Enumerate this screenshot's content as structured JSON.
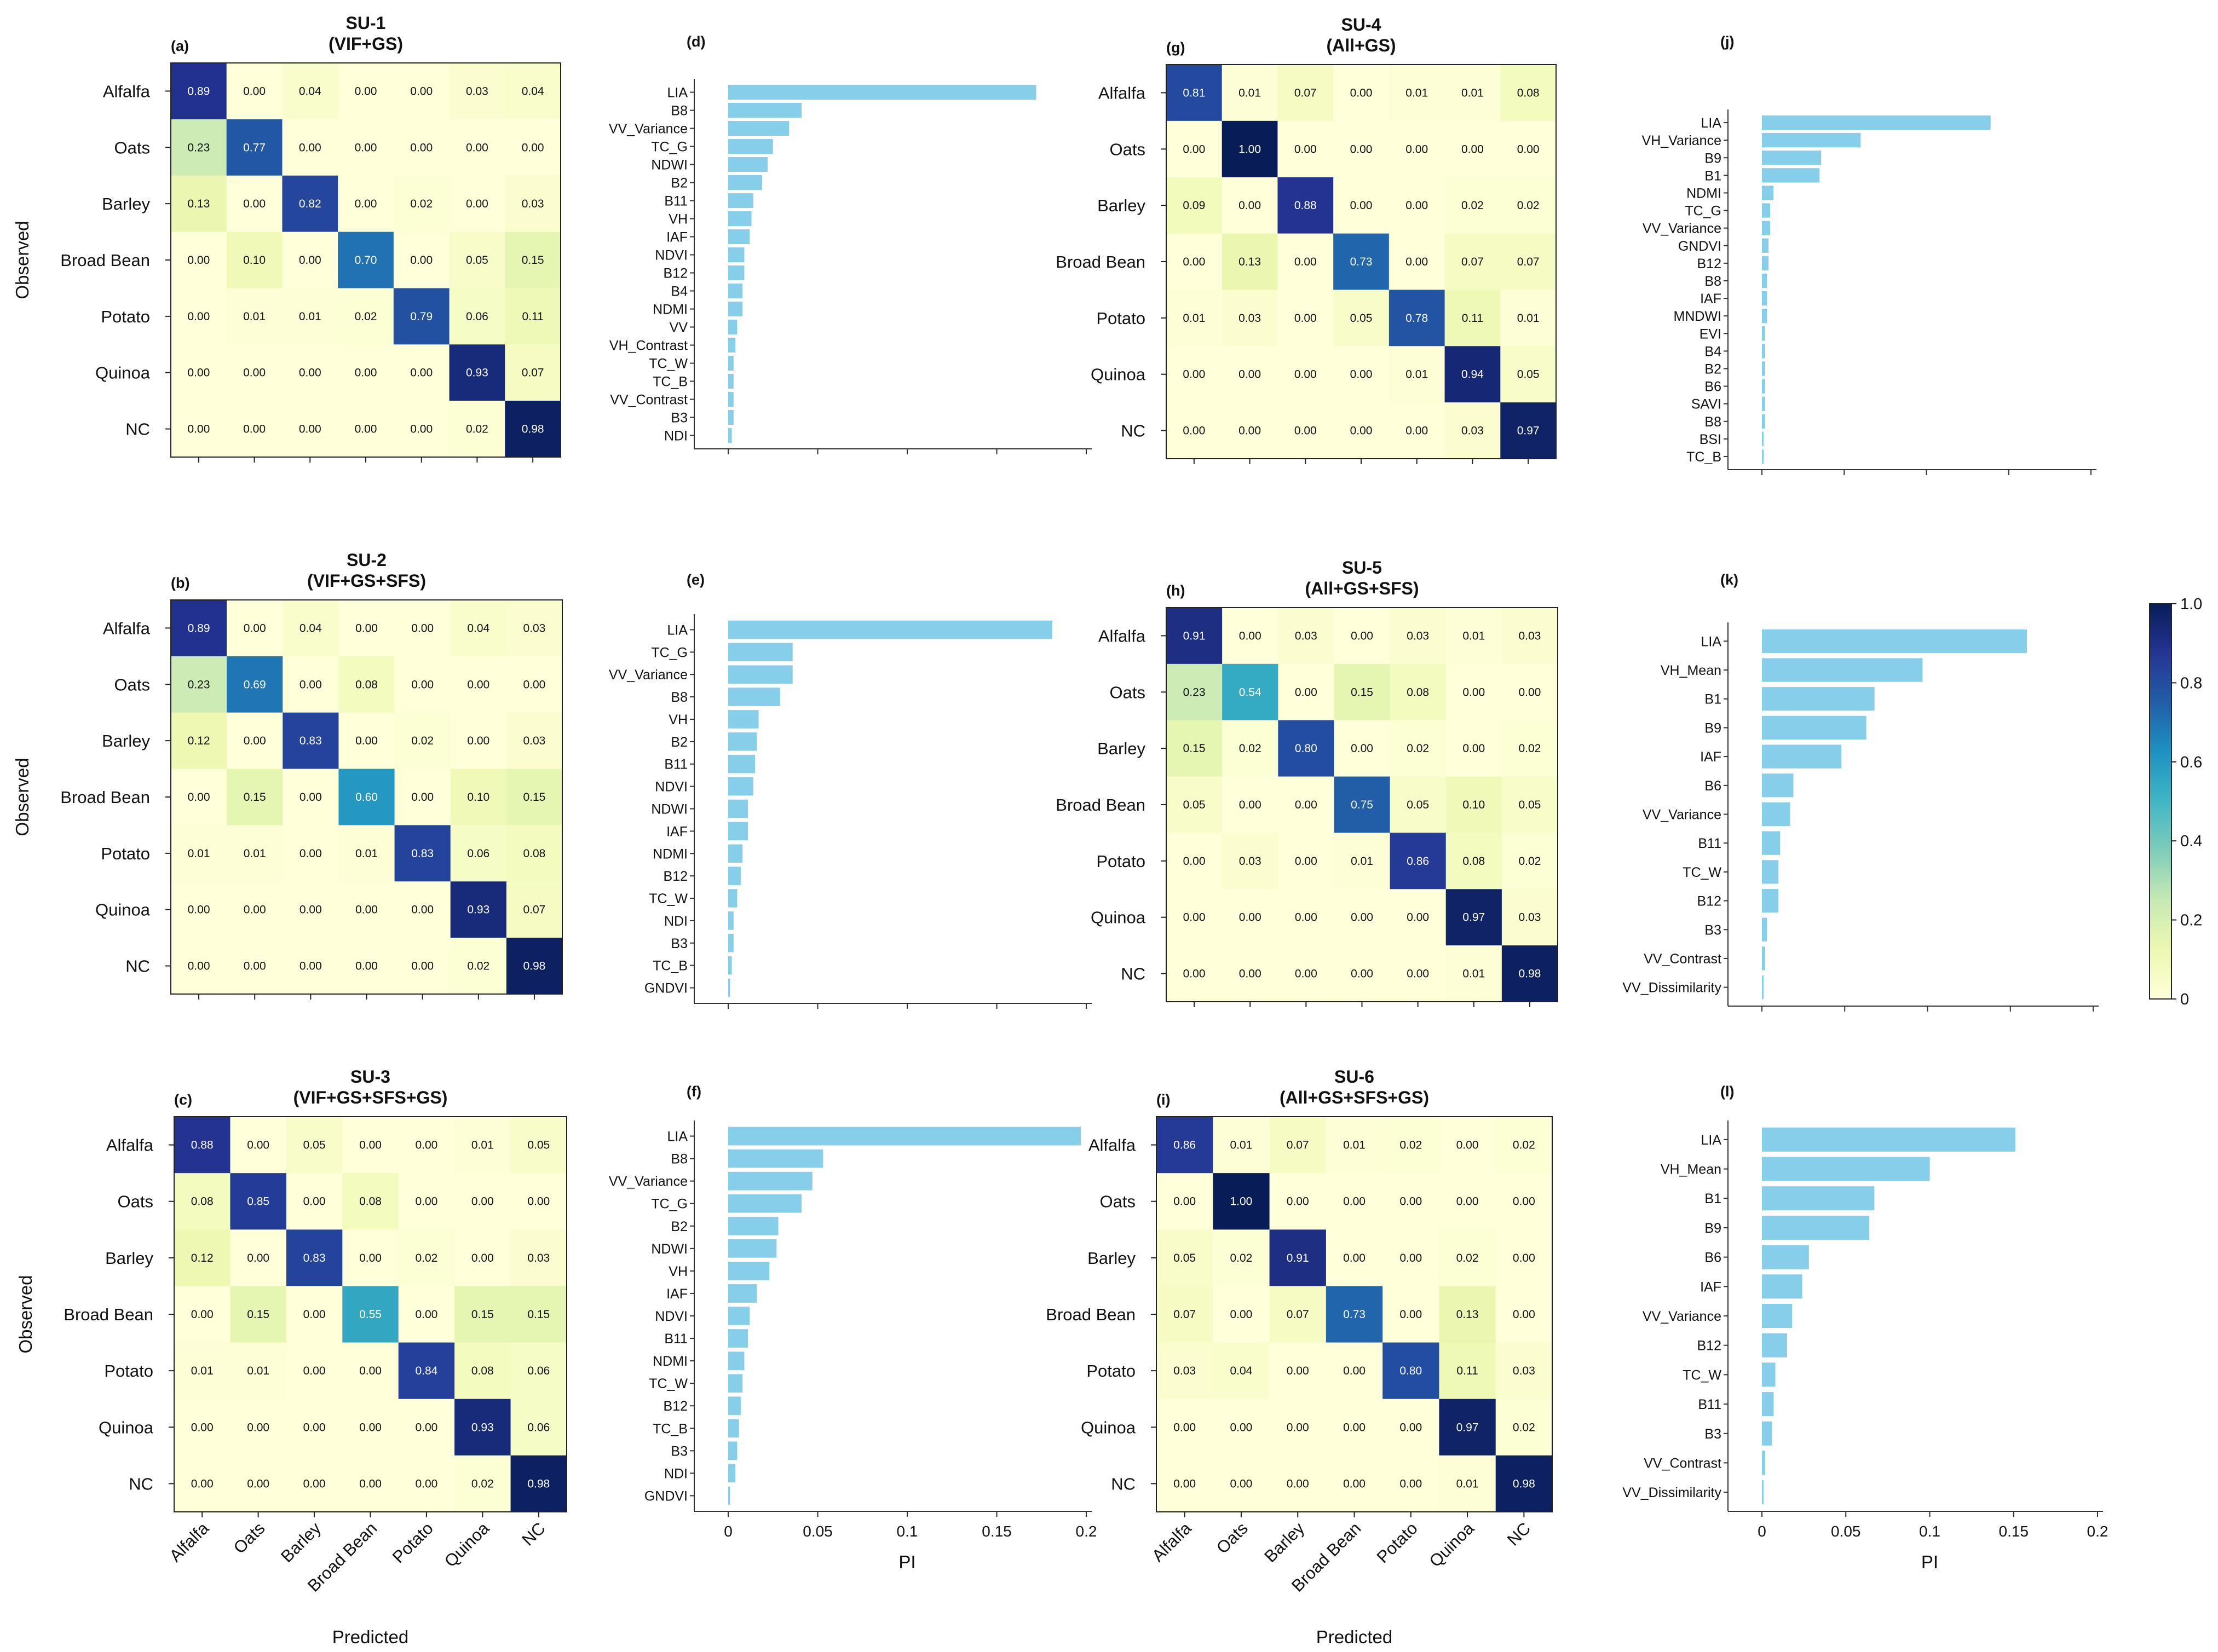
{
  "figure": {
    "class_labels": [
      "Alfalfa",
      "Oats",
      "Barley",
      "Broad Bean",
      "Potato",
      "Quinoa",
      "NC"
    ],
    "observed_label": "Observed",
    "predicted_label": "Predicted",
    "pi_label": "PI",
    "pi_ticks": [
      "0",
      "0.05",
      "0.1",
      "0.15",
      "0.2"
    ],
    "colorbar_ticks": [
      "1.0",
      "0.8",
      "0.6",
      "0.4",
      "0.2",
      "0"
    ],
    "colorscale": [
      "#ffffd9",
      "#edf8b1",
      "#c7e9b4",
      "#7fcdbb",
      "#41b6c4",
      "#1d91c0",
      "#225ea8",
      "#253494",
      "#081d58"
    ],
    "bar_color": "#87ceeb"
  },
  "chart_data": [
    {
      "type": "heatmap",
      "id": "a",
      "letter": "(a)",
      "title": "SU-1",
      "subtitle": "(VIF+GS)",
      "rows": [
        "Alfalfa",
        "Oats",
        "Barley",
        "Broad Bean",
        "Potato",
        "Quinoa",
        "NC"
      ],
      "cols": [
        "Alfalfa",
        "Oats",
        "Barley",
        "Broad Bean",
        "Potato",
        "Quinoa",
        "NC"
      ],
      "values": [
        [
          0.89,
          0.0,
          0.04,
          0.0,
          0.0,
          0.03,
          0.04
        ],
        [
          0.23,
          0.77,
          0.0,
          0.0,
          0.0,
          0.0,
          0.0
        ],
        [
          0.13,
          0.0,
          0.82,
          0.0,
          0.02,
          0.0,
          0.03
        ],
        [
          0.0,
          0.1,
          0.0,
          0.7,
          0.0,
          0.05,
          0.15
        ],
        [
          0.0,
          0.01,
          0.01,
          0.02,
          0.79,
          0.06,
          0.11
        ],
        [
          0.0,
          0.0,
          0.0,
          0.0,
          0.0,
          0.93,
          0.07
        ],
        [
          0.0,
          0.0,
          0.0,
          0.0,
          0.0,
          0.02,
          0.98
        ]
      ],
      "value_range": [
        0,
        1
      ],
      "xlabel": "",
      "ylabel": "Observed"
    },
    {
      "type": "bar",
      "orientation": "horizontal",
      "id": "d",
      "letter": "(d)",
      "categories": [
        "LIA",
        "B8",
        "VV_Variance",
        "TC_G",
        "NDWI",
        "B2",
        "B11",
        "VH",
        "IAF",
        "NDVI",
        "B12",
        "B4",
        "NDMI",
        "VV",
        "VH_Contrast",
        "TC_W",
        "TC_B",
        "VV_Contrast",
        "B3",
        "NDI"
      ],
      "values": [
        0.172,
        0.041,
        0.034,
        0.025,
        0.022,
        0.019,
        0.014,
        0.013,
        0.012,
        0.009,
        0.009,
        0.008,
        0.008,
        0.005,
        0.004,
        0.003,
        0.003,
        0.003,
        0.003,
        0.002
      ],
      "xlim": [
        0,
        0.2
      ],
      "xlabel": ""
    },
    {
      "type": "heatmap",
      "id": "b",
      "letter": "(b)",
      "title": "SU-2",
      "subtitle": "(VIF+GS+SFS)",
      "rows": [
        "Alfalfa",
        "Oats",
        "Barley",
        "Broad Bean",
        "Potato",
        "Quinoa",
        "NC"
      ],
      "cols": [
        "Alfalfa",
        "Oats",
        "Barley",
        "Broad Bean",
        "Potato",
        "Quinoa",
        "NC"
      ],
      "values": [
        [
          0.89,
          0.0,
          0.04,
          0.0,
          0.0,
          0.04,
          0.03
        ],
        [
          0.23,
          0.69,
          0.0,
          0.08,
          0.0,
          0.0,
          0.0
        ],
        [
          0.12,
          0.0,
          0.83,
          0.0,
          0.02,
          0.0,
          0.03
        ],
        [
          0.0,
          0.15,
          0.0,
          0.6,
          0.0,
          0.1,
          0.15
        ],
        [
          0.01,
          0.01,
          0.0,
          0.01,
          0.83,
          0.06,
          0.08
        ],
        [
          0.0,
          0.0,
          0.0,
          0.0,
          0.0,
          0.93,
          0.07
        ],
        [
          0.0,
          0.0,
          0.0,
          0.0,
          0.0,
          0.02,
          0.98
        ]
      ],
      "value_range": [
        0,
        1
      ],
      "xlabel": "",
      "ylabel": "Observed"
    },
    {
      "type": "bar",
      "orientation": "horizontal",
      "id": "e",
      "letter": "(e)",
      "categories": [
        "LIA",
        "TC_G",
        "VV_Variance",
        "B8",
        "VH",
        "B2",
        "B11",
        "NDVI",
        "NDWI",
        "IAF",
        "NDMI",
        "B12",
        "TC_W",
        "NDI",
        "B3",
        "TC_B",
        "GNDVI"
      ],
      "values": [
        0.181,
        0.036,
        0.036,
        0.029,
        0.017,
        0.016,
        0.015,
        0.014,
        0.011,
        0.011,
        0.008,
        0.007,
        0.005,
        0.003,
        0.003,
        0.002,
        0.001
      ],
      "xlim": [
        0,
        0.2
      ],
      "xlabel": ""
    },
    {
      "type": "heatmap",
      "id": "c",
      "letter": "(c)",
      "title": "SU-3",
      "subtitle": "(VIF+GS+SFS+GS)",
      "rows": [
        "Alfalfa",
        "Oats",
        "Barley",
        "Broad Bean",
        "Potato",
        "Quinoa",
        "NC"
      ],
      "cols": [
        "Alfalfa",
        "Oats",
        "Barley",
        "Broad Bean",
        "Potato",
        "Quinoa",
        "NC"
      ],
      "values": [
        [
          0.88,
          0.0,
          0.05,
          0.0,
          0.0,
          0.01,
          0.05
        ],
        [
          0.08,
          0.85,
          0.0,
          0.08,
          0.0,
          0.0,
          0.0
        ],
        [
          0.12,
          0.0,
          0.83,
          0.0,
          0.02,
          0.0,
          0.03
        ],
        [
          0.0,
          0.15,
          0.0,
          0.55,
          0.0,
          0.15,
          0.15
        ],
        [
          0.01,
          0.01,
          0.0,
          0.0,
          0.84,
          0.08,
          0.06
        ],
        [
          0.0,
          0.0,
          0.0,
          0.0,
          0.0,
          0.93,
          0.06
        ],
        [
          0.0,
          0.0,
          0.0,
          0.0,
          0.0,
          0.02,
          0.98
        ]
      ],
      "value_range": [
        0,
        1
      ],
      "xlabel": "Predicted",
      "ylabel": "Observed"
    },
    {
      "type": "bar",
      "orientation": "horizontal",
      "id": "f",
      "letter": "(f)",
      "categories": [
        "LIA",
        "B8",
        "VV_Variance",
        "TC_G",
        "B2",
        "NDWI",
        "VH",
        "IAF",
        "NDVI",
        "B11",
        "NDMI",
        "TC_W",
        "B12",
        "TC_B",
        "B3",
        "NDI",
        "GNDVI"
      ],
      "values": [
        0.197,
        0.053,
        0.047,
        0.041,
        0.028,
        0.027,
        0.023,
        0.016,
        0.012,
        0.011,
        0.009,
        0.008,
        0.007,
        0.006,
        0.005,
        0.004,
        0.001
      ],
      "xlim": [
        0,
        0.2
      ],
      "xlabel": "PI"
    },
    {
      "type": "heatmap",
      "id": "g",
      "letter": "(g)",
      "title": "SU-4",
      "subtitle": "(All+GS)",
      "rows": [
        "Alfalfa",
        "Oats",
        "Barley",
        "Broad Bean",
        "Potato",
        "Quinoa",
        "NC"
      ],
      "cols": [
        "Alfalfa",
        "Oats",
        "Barley",
        "Broad Bean",
        "Potato",
        "Quinoa",
        "NC"
      ],
      "values": [
        [
          0.81,
          0.01,
          0.07,
          0.0,
          0.01,
          0.01,
          0.08
        ],
        [
          0.0,
          1.0,
          0.0,
          0.0,
          0.0,
          0.0,
          0.0
        ],
        [
          0.09,
          0.0,
          0.88,
          0.0,
          0.0,
          0.02,
          0.02
        ],
        [
          0.0,
          0.13,
          0.0,
          0.73,
          0.0,
          0.07,
          0.07
        ],
        [
          0.01,
          0.03,
          0.0,
          0.05,
          0.78,
          0.11,
          0.01
        ],
        [
          0.0,
          0.0,
          0.0,
          0.0,
          0.01,
          0.94,
          0.05
        ],
        [
          0.0,
          0.0,
          0.0,
          0.0,
          0.0,
          0.03,
          0.97
        ]
      ],
      "value_range": [
        0,
        1
      ],
      "xlabel": "",
      "ylabel": ""
    },
    {
      "type": "bar",
      "orientation": "horizontal",
      "id": "j",
      "letter": "(j)",
      "categories": [
        "LIA",
        "VH_Variance",
        "B9",
        "B1",
        "NDMI",
        "TC_G",
        "VV_Variance",
        "GNDVI",
        "B12",
        "B8",
        "IAF",
        "MNDWI",
        "EVI",
        "B4",
        "B2",
        "B6",
        "SAVI",
        "B8",
        "BSI",
        "TC_B"
      ],
      "values": [
        0.139,
        0.06,
        0.036,
        0.035,
        0.007,
        0.005,
        0.005,
        0.004,
        0.004,
        0.003,
        0.003,
        0.003,
        0.002,
        0.002,
        0.002,
        0.002,
        0.002,
        0.002,
        0.001,
        0.001
      ],
      "xlim": [
        0,
        0.2
      ],
      "xlabel": ""
    },
    {
      "type": "heatmap",
      "id": "h",
      "letter": "(h)",
      "title": "SU-5",
      "subtitle": "(All+GS+SFS)",
      "rows": [
        "Alfalfa",
        "Oats",
        "Barley",
        "Broad Bean",
        "Potato",
        "Quinoa",
        "NC"
      ],
      "cols": [
        "Alfalfa",
        "Oats",
        "Barley",
        "Broad Bean",
        "Potato",
        "Quinoa",
        "NC"
      ],
      "values": [
        [
          0.91,
          0.0,
          0.03,
          0.0,
          0.03,
          0.01,
          0.03
        ],
        [
          0.23,
          0.54,
          0.0,
          0.15,
          0.08,
          0.0,
          0.0
        ],
        [
          0.15,
          0.02,
          0.8,
          0.0,
          0.02,
          0.0,
          0.02
        ],
        [
          0.05,
          0.0,
          0.0,
          0.75,
          0.05,
          0.1,
          0.05
        ],
        [
          0.0,
          0.03,
          0.0,
          0.01,
          0.86,
          0.08,
          0.02
        ],
        [
          0.0,
          0.0,
          0.0,
          0.0,
          0.0,
          0.97,
          0.03
        ],
        [
          0.0,
          0.0,
          0.0,
          0.0,
          0.0,
          0.01,
          0.98
        ]
      ],
      "value_range": [
        0,
        1
      ],
      "xlabel": "",
      "ylabel": ""
    },
    {
      "type": "bar",
      "orientation": "horizontal",
      "id": "k",
      "letter": "(k)",
      "categories": [
        "LIA",
        "VH_Mean",
        "B1",
        "B9",
        "IAF",
        "B6",
        "VV_Variance",
        "B11",
        "TC_W",
        "B12",
        "B3",
        "VV_Contrast",
        "VV_Dissimilarity"
      ],
      "values": [
        0.16,
        0.097,
        0.068,
        0.063,
        0.048,
        0.019,
        0.017,
        0.011,
        0.01,
        0.01,
        0.003,
        0.002,
        0.001
      ],
      "xlim": [
        0,
        0.2
      ],
      "xlabel": ""
    },
    {
      "type": "heatmap",
      "id": "i",
      "letter": "(i)",
      "title": "SU-6",
      "subtitle": "(All+GS+SFS+GS)",
      "rows": [
        "Alfalfa",
        "Oats",
        "Barley",
        "Broad Bean",
        "Potato",
        "Quinoa",
        "NC"
      ],
      "cols": [
        "Alfalfa",
        "Oats",
        "Barley",
        "Broad Bean",
        "Potato",
        "Quinoa",
        "NC"
      ],
      "values": [
        [
          0.86,
          0.01,
          0.07,
          0.01,
          0.02,
          0.0,
          0.02
        ],
        [
          0.0,
          1.0,
          0.0,
          0.0,
          0.0,
          0.0,
          0.0
        ],
        [
          0.05,
          0.02,
          0.91,
          0.0,
          0.0,
          0.02,
          0.0
        ],
        [
          0.07,
          0.0,
          0.07,
          0.73,
          0.0,
          0.13,
          0.0
        ],
        [
          0.03,
          0.04,
          0.0,
          0.0,
          0.8,
          0.11,
          0.03
        ],
        [
          0.0,
          0.0,
          0.0,
          0.0,
          0.0,
          0.97,
          0.02
        ],
        [
          0.0,
          0.0,
          0.0,
          0.0,
          0.0,
          0.01,
          0.98
        ]
      ],
      "value_range": [
        0,
        1
      ],
      "xlabel": "Predicted",
      "ylabel": ""
    },
    {
      "type": "bar",
      "orientation": "horizontal",
      "id": "l",
      "letter": "(l)",
      "categories": [
        "LIA",
        "VH_Mean",
        "B1",
        "B9",
        "B6",
        "IAF",
        "VV_Variance",
        "B12",
        "TC_W",
        "B11",
        "B3",
        "VV_Contrast",
        "VV_Dissimilarity"
      ],
      "values": [
        0.151,
        0.1,
        0.067,
        0.064,
        0.028,
        0.024,
        0.018,
        0.015,
        0.008,
        0.007,
        0.006,
        0.002,
        0.001
      ],
      "xlim": [
        0,
        0.2
      ],
      "xlabel": "PI"
    }
  ]
}
